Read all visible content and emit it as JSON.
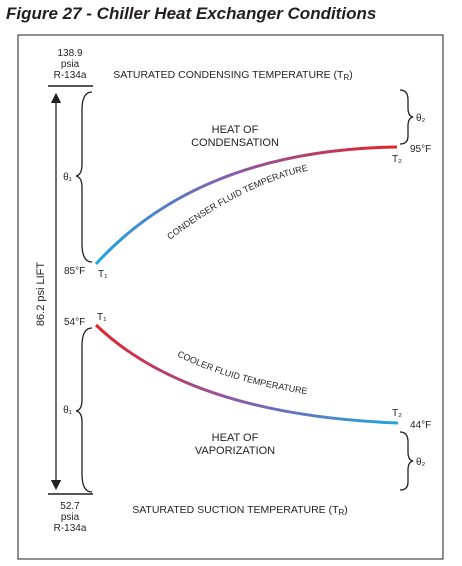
{
  "figure_title": "Figure 27 - Chiller Heat Exchanger Conditions",
  "top_pressure": {
    "value": "138.9",
    "unit": "psia",
    "refrigerant": "R-134a"
  },
  "bottom_pressure": {
    "value": "52.7",
    "unit": "psia",
    "refrigerant": "R-134a"
  },
  "lift_label": "86.2 psi  LIFT",
  "condensing": {
    "line_label": "SATURATED CONDENSING TEMPERATURE (T",
    "line_label_sub": "R",
    "line_label_end": ")",
    "heat_label_line1": "HEAT OF",
    "heat_label_line2": "CONDENSATION",
    "fluid_label": "CONDENSER FLUID TEMPERATURE",
    "t1_temp": "85°F",
    "t2_temp": "95°F",
    "theta1": "θ₁",
    "theta2": "θ₂"
  },
  "cooler": {
    "line_label": "SATURATED SUCTION TEMPERATURE (T",
    "line_label_sub": "R",
    "line_label_end": ")",
    "heat_label_line1": "HEAT OF",
    "heat_label_line2": "VAPORIZATION",
    "fluid_label": "COOLER FLUID TEMPERATURE",
    "t1_temp": "54°F",
    "t2_temp": "44°F",
    "theta1": "θ₁",
    "theta2": "θ₂"
  },
  "t1": "T₁",
  "t2": "T₂",
  "colors": {
    "hot": "#e32227",
    "mid": "#f47c20",
    "warm": "#f5e614",
    "purple": "#8a5aa8",
    "cool": "#1ea7e0",
    "ink": "#231f20"
  }
}
